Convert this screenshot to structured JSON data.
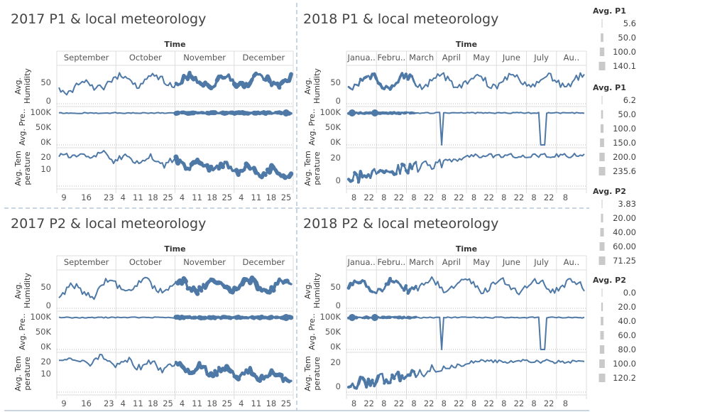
{
  "panels": [
    {
      "title": "2017 P1 & local meteorology",
      "year": 2017,
      "variant": 1
    },
    {
      "title": "2018 P1 & local meteorology",
      "year": 2018,
      "variant": 1
    },
    {
      "title": "2017 P2 & local meteorology",
      "year": 2017,
      "variant": 2
    },
    {
      "title": "2018 P2 & local meteorology",
      "year": 2018,
      "variant": 2
    }
  ],
  "time_label": "Time",
  "months": {
    "2017": [
      "September",
      "October",
      "November",
      "December"
    ],
    "2018": [
      "Janua..",
      "Febru..",
      "March",
      "April",
      "May",
      "June",
      "July",
      "Au.."
    ]
  },
  "day_ticks": {
    "2017": [
      [
        "9",
        "16",
        "23"
      ],
      [
        "4",
        "11",
        "18",
        "25"
      ],
      [
        "4",
        "11",
        "18",
        "25"
      ],
      [
        "4",
        "11",
        "18",
        "25"
      ]
    ],
    "2018": [
      [
        "8",
        "22"
      ],
      [
        "8",
        "22"
      ],
      [
        "8",
        "22"
      ],
      [
        "8",
        "22"
      ],
      [
        "8",
        "22"
      ],
      [
        "8",
        "22"
      ],
      [
        "8",
        "22"
      ],
      [
        "8"
      ]
    ]
  },
  "rows": [
    {
      "label_lines": [
        "Avg.",
        "Humidity"
      ],
      "ticks": [
        "50",
        "0"
      ]
    },
    {
      "label_lines": [
        "Avg. Pre.."
      ],
      "ticks": [
        "100K",
        "50K",
        "0K"
      ]
    },
    {
      "label_lines": [
        "Avg. Tem",
        "perature"
      ],
      "ticks_2017": [
        "20",
        "10"
      ],
      "ticks_2018": [
        "20",
        "0"
      ]
    }
  ],
  "legends": [
    {
      "title": "Avg. P1",
      "items": [
        "5.6",
        "50.0",
        "100.0",
        "140.1"
      ]
    },
    {
      "title": "Avg. P1",
      "items": [
        "6.2",
        "50.0",
        "100.0",
        "150.0",
        "200.0",
        "235.6"
      ]
    },
    {
      "title": "Avg. P2",
      "items": [
        "3.83",
        "20.00",
        "40.00",
        "60.00",
        "71.25"
      ]
    },
    {
      "title": "Avg. P2",
      "items": [
        "0.0",
        "20.0",
        "40.0",
        "60.0",
        "80.0",
        "100.0",
        "120.2"
      ]
    }
  ],
  "chart_data": {
    "type": "line",
    "series": [
      {
        "name": "Avg. Humidity",
        "ylim": [
          0,
          100
        ]
      },
      {
        "name": "Avg. Pressure",
        "ylim": [
          0,
          100000
        ]
      },
      {
        "name": "Avg. Temperature",
        "ylim": [
          -5,
          30
        ]
      }
    ],
    "encoding": "line width = Avg. P1 / Avg. P2",
    "color": "#4e79a7"
  }
}
